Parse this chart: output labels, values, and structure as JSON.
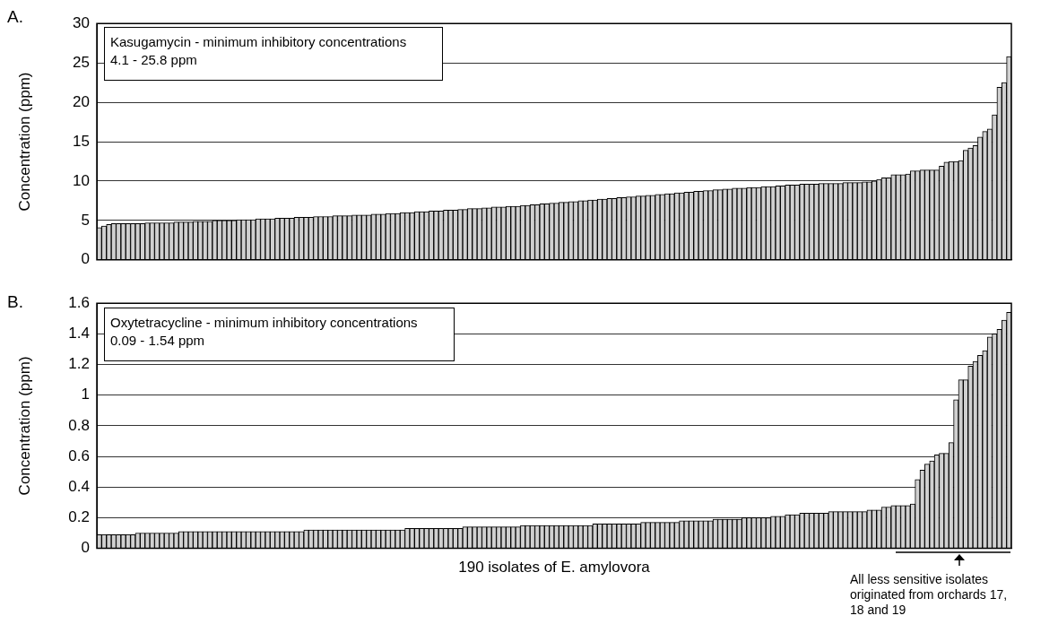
{
  "chart_data": [
    {
      "type": "bar",
      "title": "A.",
      "ylabel": "Concentration (ppm)",
      "annotations": [
        "Kasugamycin - minimum inhibitory concentrations\n4.1 - 25.8 ppm"
      ],
      "color": "#d0d0d0",
      "ylim": [
        0,
        30
      ],
      "yticks": [
        0,
        5,
        10,
        15,
        20,
        25,
        30
      ],
      "grid": "y",
      "tick_labels": "y",
      "categories": [
        null,
        null,
        null,
        null,
        null,
        null,
        null,
        null,
        null,
        null,
        null,
        null,
        null,
        null,
        null,
        null,
        null,
        null,
        null,
        null,
        null,
        null,
        null,
        null,
        null,
        null,
        null,
        null,
        null,
        null,
        null,
        null,
        null,
        null,
        null,
        null,
        null,
        null,
        null,
        null,
        null,
        null,
        null,
        null,
        null,
        null,
        null,
        null,
        null,
        null,
        null,
        null,
        null,
        null,
        null,
        null,
        null,
        null,
        null,
        null,
        null,
        null,
        null,
        null,
        null,
        null,
        null,
        null,
        null,
        null,
        null,
        null,
        null,
        null,
        null,
        null,
        null,
        null,
        null,
        null,
        null,
        null,
        null,
        null,
        null,
        null,
        null,
        null,
        null,
        null,
        null,
        null,
        null,
        null,
        null,
        null,
        null,
        null,
        null,
        null,
        null,
        null,
        null,
        null,
        null,
        null,
        null,
        null,
        null,
        null,
        null,
        null,
        null,
        null,
        null,
        null,
        null,
        null,
        null,
        null,
        null,
        null,
        null,
        null,
        null,
        null,
        null,
        null,
        null,
        null,
        null,
        null,
        null,
        null,
        null,
        null,
        null,
        null,
        null,
        null,
        null,
        null,
        null,
        null,
        null,
        null,
        null,
        null,
        null,
        null,
        null,
        null,
        null,
        null,
        null,
        null,
        null,
        null,
        null,
        null,
        null,
        null,
        null,
        null,
        null,
        null,
        null,
        null,
        null,
        null,
        null,
        null,
        null,
        null,
        null,
        null,
        null,
        null,
        null,
        null,
        null,
        null,
        null,
        null,
        null,
        null,
        null,
        null,
        null,
        null
      ],
      "values": [
        4.1,
        4.3,
        4.5,
        4.6,
        4.6,
        4.6,
        4.6,
        4.6,
        4.6,
        4.6,
        4.7,
        4.7,
        4.7,
        4.7,
        4.7,
        4.7,
        4.8,
        4.8,
        4.8,
        4.8,
        4.9,
        4.9,
        4.9,
        4.9,
        5.0,
        5.0,
        5.0,
        5.0,
        5.0,
        5.1,
        5.1,
        5.1,
        5.1,
        5.2,
        5.2,
        5.2,
        5.2,
        5.3,
        5.3,
        5.3,
        5.3,
        5.4,
        5.4,
        5.4,
        5.4,
        5.5,
        5.5,
        5.5,
        5.5,
        5.6,
        5.6,
        5.6,
        5.6,
        5.7,
        5.7,
        5.7,
        5.7,
        5.8,
        5.8,
        5.8,
        5.9,
        5.9,
        5.9,
        6.0,
        6.0,
        6.0,
        6.1,
        6.1,
        6.1,
        6.2,
        6.2,
        6.2,
        6.3,
        6.3,
        6.3,
        6.4,
        6.4,
        6.5,
        6.5,
        6.5,
        6.6,
        6.6,
        6.7,
        6.7,
        6.7,
        6.8,
        6.8,
        6.8,
        6.9,
        6.9,
        7.0,
        7.0,
        7.1,
        7.1,
        7.2,
        7.2,
        7.3,
        7.3,
        7.4,
        7.4,
        7.5,
        7.5,
        7.6,
        7.6,
        7.7,
        7.7,
        7.8,
        7.8,
        7.9,
        7.9,
        8.0,
        8.0,
        8.1,
        8.1,
        8.2,
        8.2,
        8.3,
        8.3,
        8.4,
        8.4,
        8.5,
        8.5,
        8.6,
        8.6,
        8.7,
        8.7,
        8.8,
        8.8,
        8.9,
        8.9,
        9.0,
        9.0,
        9.1,
        9.1,
        9.1,
        9.2,
        9.2,
        9.2,
        9.3,
        9.3,
        9.3,
        9.4,
        9.4,
        9.5,
        9.5,
        9.5,
        9.6,
        9.6,
        9.6,
        9.6,
        9.7,
        9.7,
        9.7,
        9.7,
        9.7,
        9.8,
        9.8,
        9.8,
        9.8,
        9.9,
        9.9,
        10.0,
        10.2,
        10.4,
        10.4,
        10.8,
        10.8,
        10.8,
        10.9,
        11.3,
        11.3,
        11.4,
        11.4,
        11.4,
        11.4,
        11.9,
        12.4,
        12.5,
        12.5,
        12.6,
        13.9,
        14.2,
        14.5,
        15.6,
        16.3,
        16.6,
        18.4,
        21.9,
        22.5,
        25.8
      ]
    },
    {
      "type": "bar",
      "title": "B.",
      "ylabel": "Concentration (ppm)",
      "xlabel": "190 isolates of E. amylovora",
      "annotations": [
        "Oxytetracycline - minimum inhibitory concentrations\n0.09 - 1.54 ppm",
        "All less sensitive isolates originated from orchards 17, 18 and 19"
      ],
      "color": "#d0d0d0",
      "ylim": [
        0,
        1.6
      ],
      "yticks": [
        0,
        0.2,
        0.4,
        0.6,
        0.8,
        1,
        1.2,
        1.4,
        1.6
      ],
      "grid": "y",
      "tick_labels": "y",
      "categories": [
        null,
        null,
        null,
        null,
        null,
        null,
        null,
        null,
        null,
        null,
        null,
        null,
        null,
        null,
        null,
        null,
        null,
        null,
        null,
        null,
        null,
        null,
        null,
        null,
        null,
        null,
        null,
        null,
        null,
        null,
        null,
        null,
        null,
        null,
        null,
        null,
        null,
        null,
        null,
        null,
        null,
        null,
        null,
        null,
        null,
        null,
        null,
        null,
        null,
        null,
        null,
        null,
        null,
        null,
        null,
        null,
        null,
        null,
        null,
        null,
        null,
        null,
        null,
        null,
        null,
        null,
        null,
        null,
        null,
        null,
        null,
        null,
        null,
        null,
        null,
        null,
        null,
        null,
        null,
        null,
        null,
        null,
        null,
        null,
        null,
        null,
        null,
        null,
        null,
        null,
        null,
        null,
        null,
        null,
        null,
        null,
        null,
        null,
        null,
        null,
        null,
        null,
        null,
        null,
        null,
        null,
        null,
        null,
        null,
        null,
        null,
        null,
        null,
        null,
        null,
        null,
        null,
        null,
        null,
        null,
        null,
        null,
        null,
        null,
        null,
        null,
        null,
        null,
        null,
        null,
        null,
        null,
        null,
        null,
        null,
        null,
        null,
        null,
        null,
        null,
        null,
        null,
        null,
        null,
        null,
        null,
        null,
        null,
        null,
        null,
        null,
        null,
        null,
        null,
        null,
        null,
        null,
        null,
        null,
        null,
        null,
        null,
        null,
        null,
        null,
        null,
        null,
        null,
        null,
        null,
        null,
        null,
        null,
        null,
        null,
        null,
        null,
        null,
        null,
        null,
        null,
        null,
        null,
        null,
        null,
        null,
        null,
        null,
        null,
        null
      ],
      "values": [
        0.09,
        0.09,
        0.09,
        0.09,
        0.09,
        0.09,
        0.09,
        0.09,
        0.1,
        0.1,
        0.1,
        0.1,
        0.1,
        0.1,
        0.1,
        0.1,
        0.1,
        0.11,
        0.11,
        0.11,
        0.11,
        0.11,
        0.11,
        0.11,
        0.11,
        0.11,
        0.11,
        0.11,
        0.11,
        0.11,
        0.11,
        0.11,
        0.11,
        0.11,
        0.11,
        0.11,
        0.11,
        0.11,
        0.11,
        0.11,
        0.11,
        0.11,
        0.11,
        0.12,
        0.12,
        0.12,
        0.12,
        0.12,
        0.12,
        0.12,
        0.12,
        0.12,
        0.12,
        0.12,
        0.12,
        0.12,
        0.12,
        0.12,
        0.12,
        0.12,
        0.12,
        0.12,
        0.12,
        0.12,
        0.13,
        0.13,
        0.13,
        0.13,
        0.13,
        0.13,
        0.13,
        0.13,
        0.13,
        0.13,
        0.13,
        0.13,
        0.14,
        0.14,
        0.14,
        0.14,
        0.14,
        0.14,
        0.14,
        0.14,
        0.14,
        0.14,
        0.14,
        0.14,
        0.15,
        0.15,
        0.15,
        0.15,
        0.15,
        0.15,
        0.15,
        0.15,
        0.15,
        0.15,
        0.15,
        0.15,
        0.15,
        0.15,
        0.15,
        0.16,
        0.16,
        0.16,
        0.16,
        0.16,
        0.16,
        0.16,
        0.16,
        0.16,
        0.16,
        0.17,
        0.17,
        0.17,
        0.17,
        0.17,
        0.17,
        0.17,
        0.17,
        0.18,
        0.18,
        0.18,
        0.18,
        0.18,
        0.18,
        0.18,
        0.19,
        0.19,
        0.19,
        0.19,
        0.19,
        0.19,
        0.2,
        0.2,
        0.2,
        0.2,
        0.2,
        0.2,
        0.21,
        0.21,
        0.21,
        0.22,
        0.22,
        0.22,
        0.23,
        0.23,
        0.23,
        0.23,
        0.23,
        0.23,
        0.24,
        0.24,
        0.24,
        0.24,
        0.24,
        0.24,
        0.24,
        0.24,
        0.25,
        0.25,
        0.25,
        0.27,
        0.27,
        0.28,
        0.28,
        0.28,
        0.28,
        0.29,
        0.45,
        0.51,
        0.55,
        0.57,
        0.61,
        0.62,
        0.62,
        0.69,
        0.97,
        1.1,
        1.1,
        1.19,
        1.22,
        1.26,
        1.29,
        1.38,
        1.4,
        1.43,
        1.49,
        1.54
      ]
    }
  ]
}
